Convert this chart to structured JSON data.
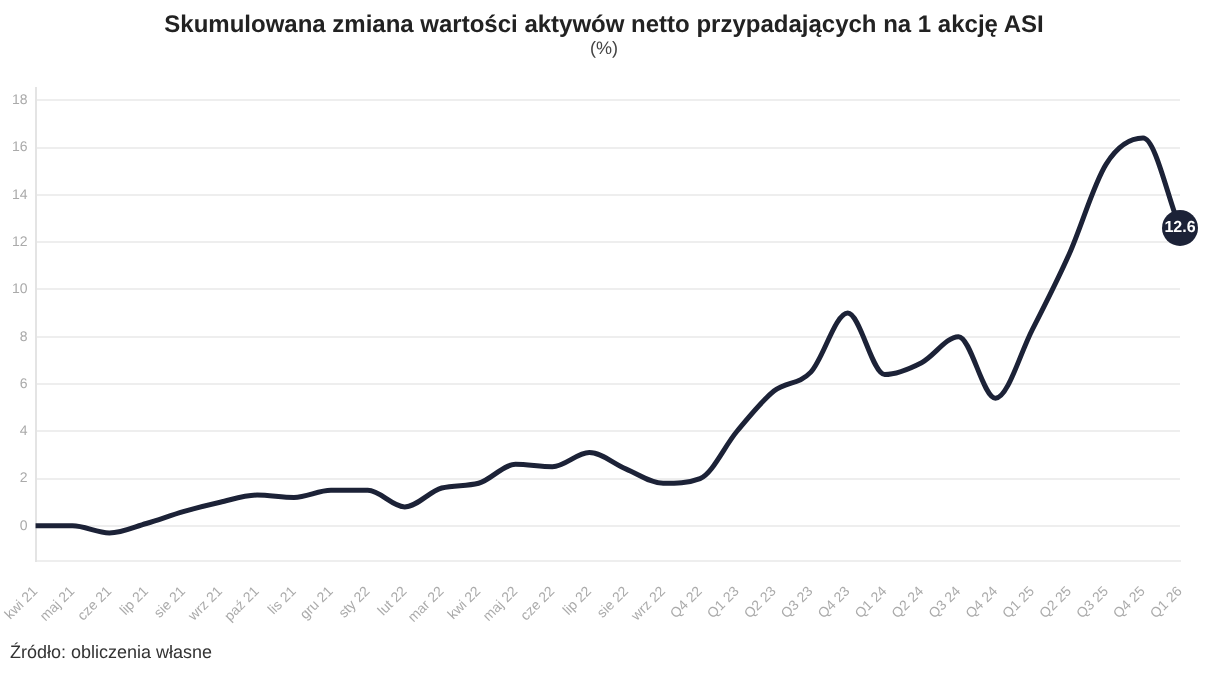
{
  "chart_data": {
    "type": "line",
    "title": "Skumulowana zmiana wartości aktywów netto przypadających na 1 akcję ASI",
    "subtitle": "(%)",
    "categories": [
      "kwi 21",
      "maj 21",
      "cze 21",
      "lip 21",
      "sie 21",
      "wrz 21",
      "paź 21",
      "lis 21",
      "gru 21",
      "sty 22",
      "lut 22",
      "mar 22",
      "kwi 22",
      "maj 22",
      "cze 22",
      "lip 22",
      "sie 22",
      "wrz 22",
      "Q4 22",
      "Q1 23",
      "Q2 23",
      "Q3 23",
      "Q4 23",
      "Q1 24",
      "Q2 24",
      "Q3 24",
      "Q4 24",
      "Q1 25",
      "Q2 25",
      "Q3 25",
      "Q4 25",
      "Q1 26"
    ],
    "series": [
      {
        "color": "#1c2237",
        "values": [
          0,
          0,
          -0.3,
          0.1,
          0.6,
          1.0,
          1.3,
          1.2,
          1.5,
          1.5,
          0.8,
          1.6,
          1.8,
          2.6,
          2.5,
          3.1,
          2.4,
          1.8,
          2.0,
          4.0,
          5.7,
          6.5,
          9.0,
          6.4,
          6.9,
          8.0,
          5.4,
          8.3,
          11.5,
          15.3,
          16.4,
          12.6
        ],
        "value_labels": [
          null,
          null,
          null,
          null,
          null,
          null,
          null,
          null,
          null,
          null,
          null,
          null,
          null,
          null,
          null,
          null,
          null,
          null,
          null,
          null,
          null,
          null,
          null,
          null,
          null,
          null,
          null,
          null,
          null,
          null,
          null,
          "12.6"
        ]
      }
    ],
    "ylim": [
      -1.5,
      18.5
    ],
    "yticks": [
      0,
      2,
      4,
      6,
      8,
      10,
      12,
      14,
      16,
      18
    ],
    "grid": "y",
    "legend": false,
    "marker": "none",
    "line_style": "solid",
    "annotations": [
      "Źródło: obliczenia własne"
    ]
  }
}
